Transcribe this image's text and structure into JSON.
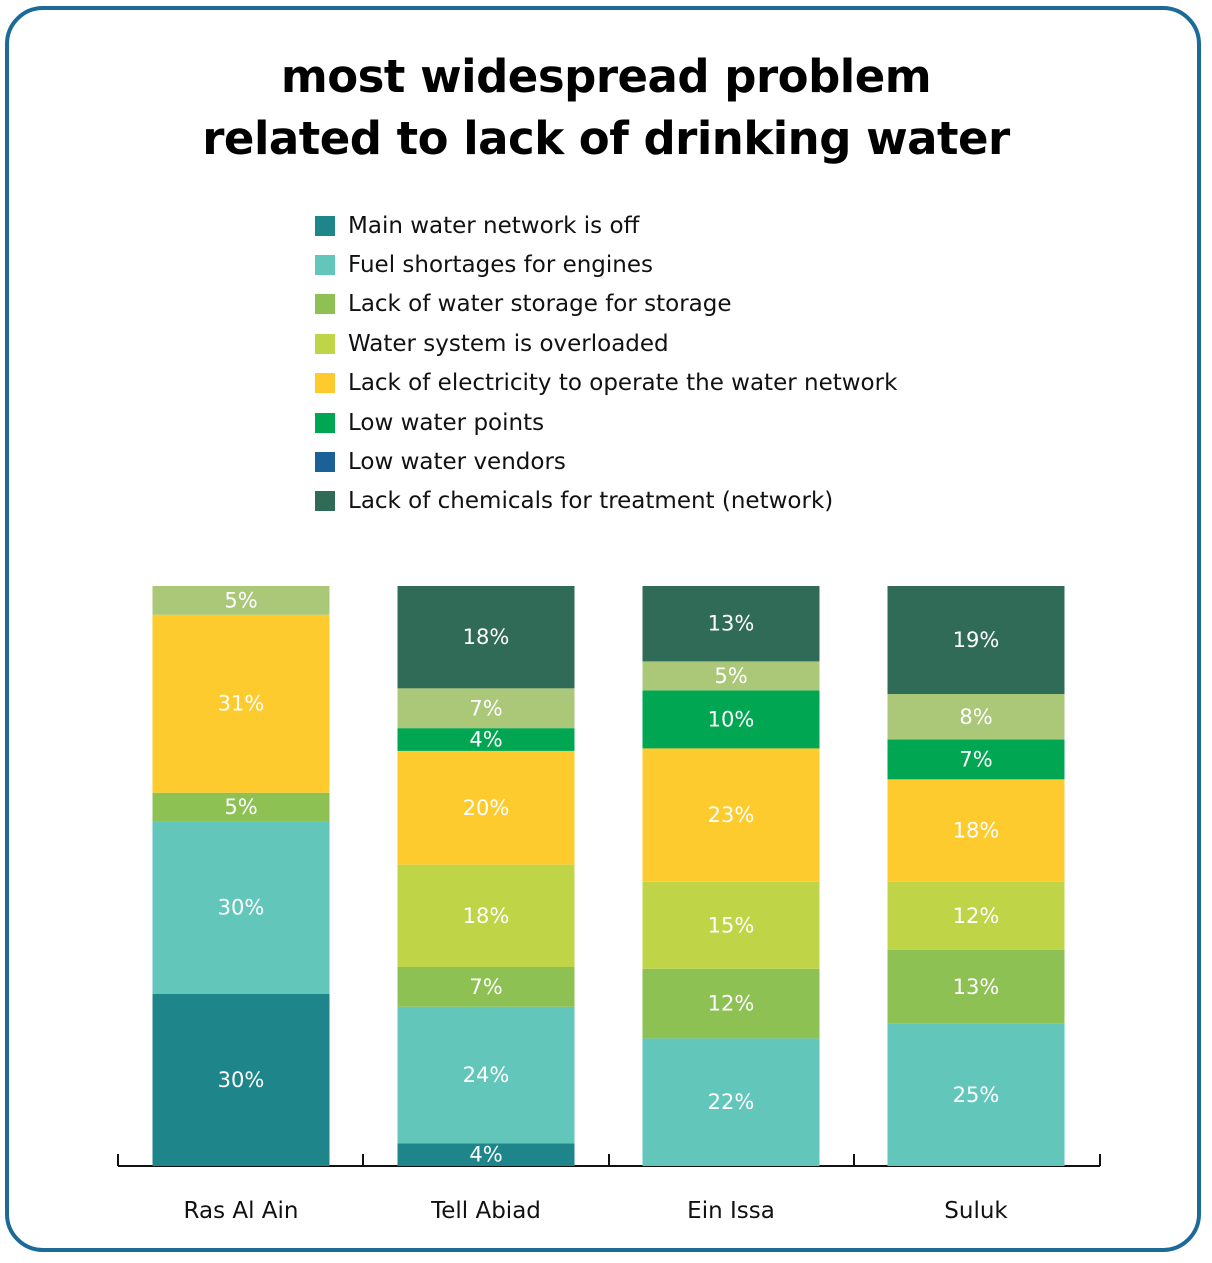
{
  "chart_data": {
    "type": "bar",
    "stacked": true,
    "title": "most widespread problem related to lack of drinking water",
    "title_lines": [
      "most widespread problem",
      "related to lack of drinking water"
    ],
    "categories": [
      "Ras Al Ain",
      "Tell Abiad",
      "Ein Issa",
      "Suluk"
    ],
    "legend": [
      {
        "name": "Main water network is off",
        "color": "#1e868b"
      },
      {
        "name": "Fuel shortages for engines",
        "color": "#62c6bb"
      },
      {
        "name": "Lack of water storage for storage",
        "color": "#8dc153"
      },
      {
        "name": "Water system is overloaded",
        "color": "#bfd447"
      },
      {
        "name": "Lack of electricity to operate the water network",
        "color": "#fecb2e"
      },
      {
        "name": "Low water points",
        "color": "#00a651"
      },
      {
        "name": "Low water vendors",
        "color": "#1b6096"
      },
      {
        "name": "Lack of chemicals for treatment (network)",
        "color": "#306b58"
      }
    ],
    "bars": [
      {
        "category": "Ras Al Ain",
        "segments": [
          {
            "value": 30,
            "label": "30%",
            "color": "#1e868b"
          },
          {
            "value": 30,
            "label": "30%",
            "color": "#62c6bb"
          },
          {
            "value": 5,
            "label": "5%",
            "color": "#8dc153"
          },
          {
            "value": 31,
            "label": "31%",
            "color": "#fecb2e"
          },
          {
            "value": 5,
            "label": "5%",
            "color": "#abc878"
          }
        ]
      },
      {
        "category": "Tell Abiad",
        "segments": [
          {
            "value": 4,
            "label": "4%",
            "color": "#1e868b"
          },
          {
            "value": 24,
            "label": "24%",
            "color": "#62c6bb"
          },
          {
            "value": 7,
            "label": "7%",
            "color": "#8dc153"
          },
          {
            "value": 18,
            "label": "18%",
            "color": "#bfd447"
          },
          {
            "value": 20,
            "label": "20%",
            "color": "#fecb2e"
          },
          {
            "value": 4,
            "label": "4%",
            "color": "#00a651"
          },
          {
            "value": 7,
            "label": "7%",
            "color": "#abc878"
          },
          {
            "value": 18,
            "label": "18%",
            "color": "#306b58"
          }
        ]
      },
      {
        "category": "Ein Issa",
        "segments": [
          {
            "value": 22,
            "label": "22%",
            "color": "#62c6bb"
          },
          {
            "value": 12,
            "label": "12%",
            "color": "#8dc153"
          },
          {
            "value": 15,
            "label": "15%",
            "color": "#bfd447"
          },
          {
            "value": 23,
            "label": "23%",
            "color": "#fecb2e"
          },
          {
            "value": 10,
            "label": "10%",
            "color": "#00a651"
          },
          {
            "value": 5,
            "label": "5%",
            "color": "#abc878"
          },
          {
            "value": 13,
            "label": "13%",
            "color": "#306b58"
          }
        ]
      },
      {
        "category": "Suluk",
        "segments": [
          {
            "value": 25,
            "label": "25%",
            "color": "#62c6bb"
          },
          {
            "value": 13,
            "label": "13%",
            "color": "#8dc153"
          },
          {
            "value": 12,
            "label": "12%",
            "color": "#bfd447"
          },
          {
            "value": 18,
            "label": "18%",
            "color": "#fecb2e"
          },
          {
            "value": 7,
            "label": "7%",
            "color": "#00a651"
          },
          {
            "value": 8,
            "label": "8%",
            "color": "#abc878"
          },
          {
            "value": 19,
            "label": "19%",
            "color": "#306b58"
          }
        ]
      }
    ],
    "frame_color": "#1b6a98"
  }
}
